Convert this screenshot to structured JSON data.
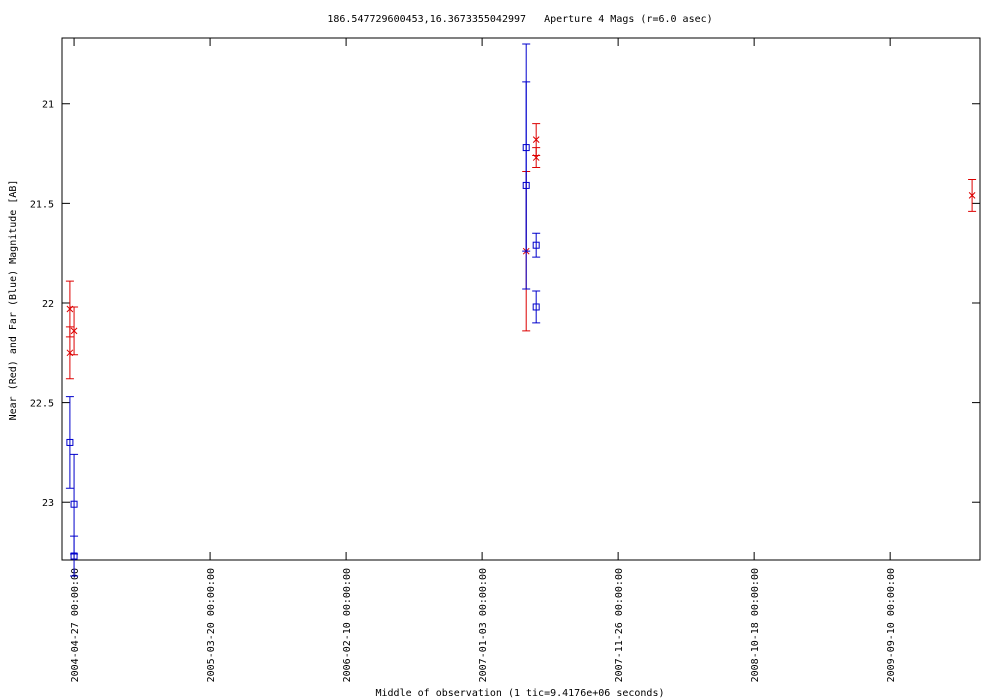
{
  "chart_data": {
    "type": "scatter",
    "title": "186.547729600453,16.3673355042997   Aperture 4 Mags (r=6.0 asec)",
    "x_label": "Middle of observation (1 tic=9.4176e+06 seconds)",
    "y_label": "Near (Red) and Far (Blue) Magnitude [AB]",
    "ylim": [
      20.67,
      23.29
    ],
    "y_inverted": true,
    "yticks": [
      21,
      21.5,
      22,
      22.5,
      23
    ],
    "xlim": [
      "2004-03-29",
      "2010-04-14"
    ],
    "xticks": [
      {
        "value": "2004-04-27",
        "label": "2004-04-27 00:00:00"
      },
      {
        "value": "2005-03-20",
        "label": "2005-03-20 00:00:00"
      },
      {
        "value": "2006-02-10",
        "label": "2006-02-10 00:00:00"
      },
      {
        "value": "2007-01-03",
        "label": "2007-01-03 00:00:00"
      },
      {
        "value": "2007-11-26",
        "label": "2007-11-26 00:00:00"
      },
      {
        "value": "2008-10-18",
        "label": "2008-10-18 00:00:00"
      },
      {
        "value": "2009-09-10",
        "label": "2009-09-10 00:00:00"
      }
    ],
    "grid": false,
    "series": [
      {
        "color": "#dd0000",
        "marker": "x",
        "x": [
          "2004-04-17",
          "2004-04-17",
          "2004-04-27",
          "2007-04-19",
          "2007-05-13",
          "2007-05-13",
          "2010-03-26"
        ],
        "values": [
          22.03,
          22.25,
          22.14,
          21.74,
          21.18,
          21.27,
          21.46
        ],
        "errors": [
          0.14,
          0.13,
          0.12,
          0.4,
          0.08,
          0.05,
          0.08
        ]
      },
      {
        "color": "#0000cc",
        "marker": "square",
        "x": [
          "2004-04-17",
          "2004-04-27",
          "2004-04-27",
          "2007-04-19",
          "2007-04-19",
          "2007-05-13",
          "2007-05-13"
        ],
        "values": [
          22.7,
          23.01,
          23.27,
          21.22,
          21.41,
          21.71,
          22.02
        ],
        "errors": [
          0.23,
          0.25,
          0.1,
          0.52,
          0.52,
          0.06,
          0.08
        ]
      }
    ]
  }
}
